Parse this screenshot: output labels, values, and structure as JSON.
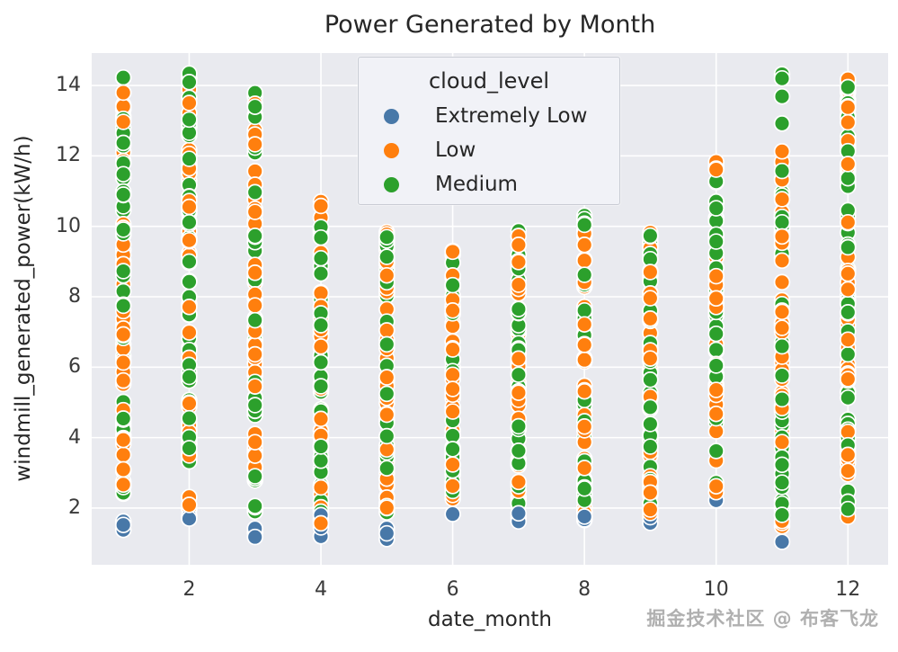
{
  "chart_data": {
    "type": "scatter",
    "title": "Power Generated by Month",
    "xlabel": "date_month",
    "ylabel": "windmill_generated_power(kW/h)",
    "xlim": [
      0.52,
      12.61
    ],
    "ylim": [
      0.39,
      14.92
    ],
    "x_ticks": [
      2,
      4,
      6,
      8,
      10,
      12
    ],
    "y_ticks": [
      2,
      4,
      6,
      8,
      10,
      12,
      14
    ],
    "grid": true,
    "plot_bg": "#e9eaef",
    "grid_color": "#ffffff",
    "marker": {
      "radius": 8.4,
      "edge_color": "#ffffff",
      "edge_width": 1.7
    },
    "legend": {
      "title": "cloud_level",
      "position": "upper center",
      "entries": [
        {
          "label": "Extremely Low",
          "color": "#4878a8"
        },
        {
          "label": "Low",
          "color": "#ff7f0e"
        },
        {
          "label": "Medium",
          "color": "#2ca02c"
        }
      ]
    },
    "series": [
      {
        "name": "Extremely Low",
        "color": "#4878a8",
        "months": [
          {
            "month": 1,
            "segments": [],
            "points": [
              1.38,
              1.52,
              1.62
            ]
          },
          {
            "month": 2,
            "segments": [],
            "points": [
              1.7,
              1.78
            ]
          },
          {
            "month": 3,
            "segments": [],
            "points": [
              1.18,
              1.3,
              1.42
            ]
          },
          {
            "month": 4,
            "segments": [],
            "points": [
              1.2,
              1.45,
              1.62,
              1.8
            ]
          },
          {
            "month": 5,
            "segments": [],
            "points": [
              1.12,
              1.28,
              1.42
            ]
          },
          {
            "month": 6,
            "segments": [],
            "points": [
              1.83
            ]
          },
          {
            "month": 7,
            "segments": [],
            "points": [
              1.62,
              1.74,
              1.85
            ]
          },
          {
            "month": 8,
            "segments": [],
            "points": [
              1.68,
              1.76
            ]
          },
          {
            "month": 9,
            "segments": [],
            "points": [
              1.58,
              1.74,
              1.88
            ]
          },
          {
            "month": 10,
            "segments": [],
            "points": [
              2.22
            ]
          },
          {
            "month": 11,
            "segments": [],
            "points": [
              1.04,
              1.91,
              1.98
            ]
          },
          {
            "month": 12,
            "segments": [],
            "points": []
          }
        ]
      },
      {
        "name": "Low",
        "color": "#ff7f0e",
        "months": [
          {
            "month": 1,
            "segments": [
              [
                1.95,
                14.35,
                48
              ]
            ],
            "points": []
          },
          {
            "month": 2,
            "segments": [
              [
                1.95,
                14.3,
                48
              ]
            ],
            "points": []
          },
          {
            "month": 3,
            "segments": [
              [
                1.35,
                13.8,
                46
              ]
            ],
            "points": []
          },
          {
            "month": 4,
            "segments": [
              [
                1.45,
                10.45,
                36
              ]
            ],
            "points": [
              10.58,
              10.7
            ]
          },
          {
            "month": 5,
            "segments": [
              [
                1.5,
                9.85,
                34
              ]
            ],
            "points": []
          },
          {
            "month": 6,
            "segments": [
              [
                2.1,
                9.65,
                32
              ]
            ],
            "points": []
          },
          {
            "month": 7,
            "segments": [
              [
                1.95,
                9.75,
                34
              ]
            ],
            "points": []
          },
          {
            "month": 8,
            "segments": [
              [
                1.38,
                10.18,
                36
              ]
            ],
            "points": []
          },
          {
            "month": 9,
            "segments": [
              [
                1.65,
                10.12,
                34
              ]
            ],
            "points": []
          },
          {
            "month": 10,
            "segments": [
              [
                3.95,
                12.0,
                28
              ]
            ],
            "points": [
              3.35,
              2.62,
              2.45
            ]
          },
          {
            "month": 11,
            "segments": [
              [
                1.4,
                12.3,
                44
              ]
            ],
            "points": []
          },
          {
            "month": 12,
            "segments": [
              [
                1.75,
                14.35,
                48
              ]
            ],
            "points": []
          }
        ]
      },
      {
        "name": "Medium",
        "color": "#2ca02c",
        "months": [
          {
            "month": 1,
            "segments": [
              [
                2.2,
                14.4,
                48
              ]
            ],
            "points": []
          },
          {
            "month": 2,
            "segments": [
              [
                2.0,
                14.37,
                48
              ]
            ],
            "points": []
          },
          {
            "month": 3,
            "segments": [
              [
                1.5,
                13.95,
                46
              ]
            ],
            "points": []
          },
          {
            "month": 4,
            "segments": [
              [
                1.6,
                10.35,
                36
              ]
            ],
            "points": []
          },
          {
            "month": 5,
            "segments": [
              [
                1.7,
                9.7,
                34
              ]
            ],
            "points": []
          },
          {
            "month": 6,
            "segments": [
              [
                2.3,
                9.4,
                32
              ]
            ],
            "points": []
          },
          {
            "month": 7,
            "segments": [
              [
                2.1,
                9.9,
                34
              ]
            ],
            "points": []
          },
          {
            "month": 8,
            "segments": [
              [
                1.6,
                10.35,
                36
              ]
            ],
            "points": []
          },
          {
            "month": 9,
            "segments": [
              [
                1.8,
                10.0,
                34
              ]
            ],
            "points": []
          },
          {
            "month": 10,
            "segments": [
              [
                3.9,
                12.18,
                30
              ]
            ],
            "points": [
              3.62,
              2.72
            ]
          },
          {
            "month": 11,
            "segments": [
              [
                1.6,
                12.3,
                42
              ]
            ],
            "points": [
              12.92,
              13.69,
              14.2,
              14.32
            ]
          },
          {
            "month": 12,
            "segments": [
              [
                1.9,
                14.45,
                48
              ]
            ],
            "points": []
          }
        ]
      }
    ]
  },
  "watermark": {
    "text": "掘金技术社区 @ 布客飞龙"
  }
}
